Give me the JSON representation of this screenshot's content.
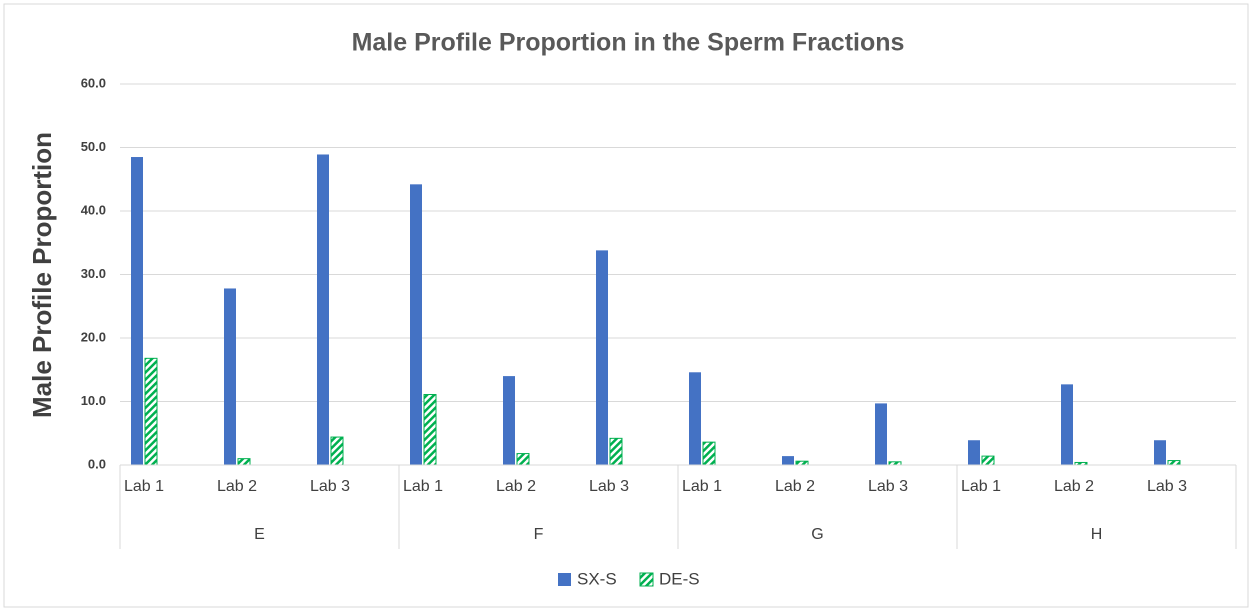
{
  "chart_data": {
    "type": "bar",
    "title": "Male Profile Proportion in the Sperm Fractions",
    "y_label": "Male Profile Proportion",
    "categories": [
      "Lab 1",
      "Lab 2",
      "Lab 3",
      "Lab 1",
      "Lab 2",
      "Lab 3",
      "Lab 1",
      "Lab 2",
      "Lab 3",
      "Lab 1",
      "Lab 2",
      "Lab 3"
    ],
    "groups": [
      "E",
      "F",
      "G",
      "H"
    ],
    "series": [
      {
        "name": "SX-S",
        "color": "#4472c4",
        "values": [
          48.5,
          27.8,
          48.9,
          44.2,
          14.0,
          33.8,
          14.6,
          1.4,
          9.7,
          3.9,
          12.7,
          3.9
        ]
      },
      {
        "name": "DE-S",
        "color": "#00b050",
        "pattern": "diagonal",
        "values": [
          16.8,
          1.0,
          4.4,
          11.1,
          1.8,
          4.2,
          3.6,
          0.6,
          0.5,
          1.4,
          0.4,
          0.7
        ]
      }
    ],
    "ylim": [
      0,
      60
    ],
    "yticks": [
      {
        "value": 0,
        "label": "0.0"
      },
      {
        "value": 10,
        "label": "10.0"
      },
      {
        "value": 20,
        "label": "20.0"
      },
      {
        "value": 30,
        "label": "30.0"
      },
      {
        "value": 40,
        "label": "40.0"
      },
      {
        "value": 50,
        "label": "50.0"
      },
      {
        "value": 60,
        "label": "60.0"
      }
    ],
    "grid": true,
    "legend": "bottom"
  }
}
